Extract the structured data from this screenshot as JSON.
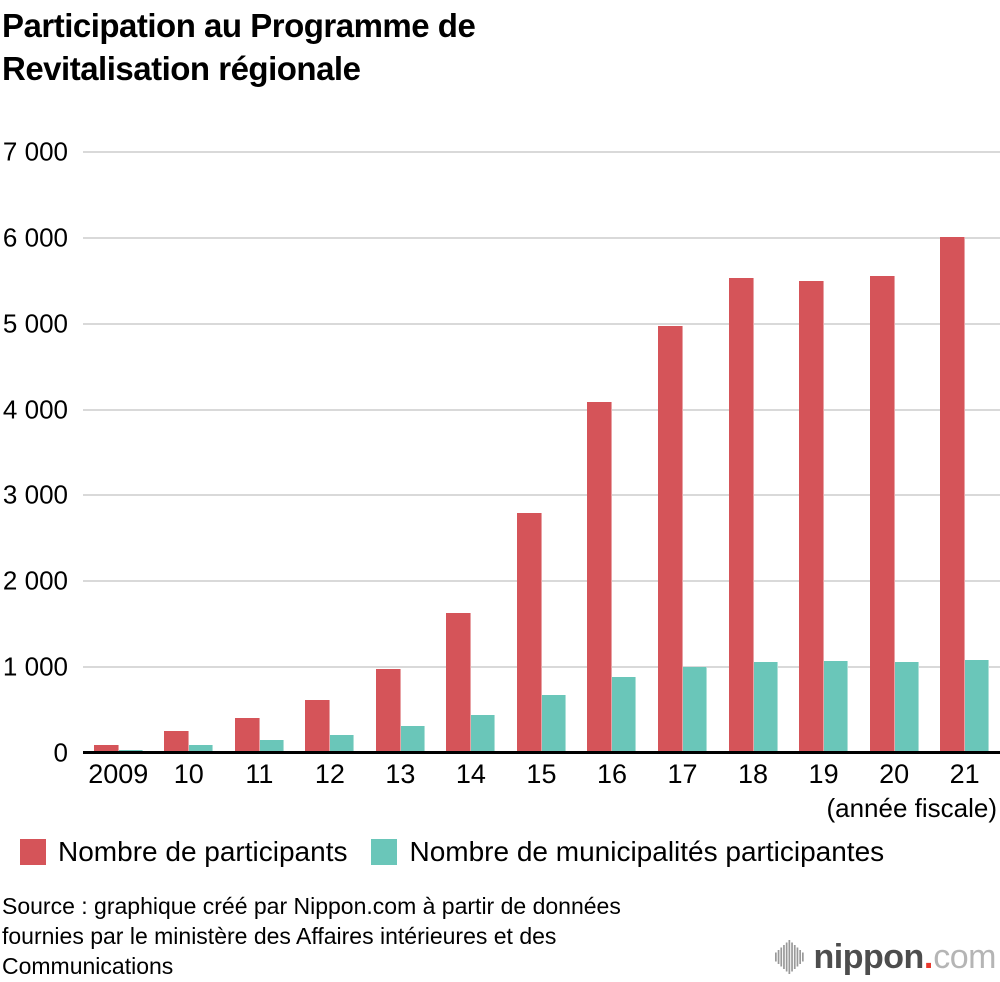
{
  "title": {
    "lines": [
      "Participation au Programme de",
      "Revitalisation régionale"
    ]
  },
  "chart_data": {
    "type": "bar",
    "categories": [
      "2009",
      "10",
      "11",
      "12",
      "13",
      "14",
      "15",
      "16",
      "17",
      "18",
      "19",
      "20",
      "21"
    ],
    "series": [
      {
        "name": "Nombre de participants",
        "color": "#d55459",
        "values": [
          89,
          257,
          413,
          617,
          978,
          1629,
          2799,
          4090,
          4976,
          5530,
          5503,
          5556,
          6015
        ]
      },
      {
        "name": "Nombre de municipalités participantes",
        "color": "#6ac6b9",
        "values": [
          31,
          90,
          147,
          207,
          318,
          444,
          673,
          886,
          997,
          1061,
          1071,
          1065,
          1085
        ]
      }
    ],
    "ylim": [
      0,
      7000
    ],
    "yticks": [
      {
        "value": 7000,
        "label": "7 000"
      },
      {
        "value": 6000,
        "label": "6 000"
      },
      {
        "value": 5000,
        "label": "5 000"
      },
      {
        "value": 4000,
        "label": "4 000"
      },
      {
        "value": 3000,
        "label": "3 000"
      },
      {
        "value": 2000,
        "label": "2 000"
      },
      {
        "value": 1000,
        "label": "1 000"
      },
      {
        "value": 0,
        "label": "0"
      }
    ],
    "x_axis_note": "(année fiscale)",
    "grid": true,
    "legend_position": "bottom"
  },
  "footer": {
    "source_lines": [
      "Source : graphique créé par Nippon.com à partir de données",
      "fournies par le ministère des Affaires intérieures et des",
      "Communications"
    ]
  },
  "logo": {
    "name": "nippon",
    "dot": ".",
    "tld": "com"
  },
  "colors": {
    "gridline": "#d9d9d9",
    "axis": "#000000",
    "logo_gray": "#4d4d4d",
    "logo_light_gray": "#b5b5b5",
    "logo_red": "#e8372c"
  }
}
